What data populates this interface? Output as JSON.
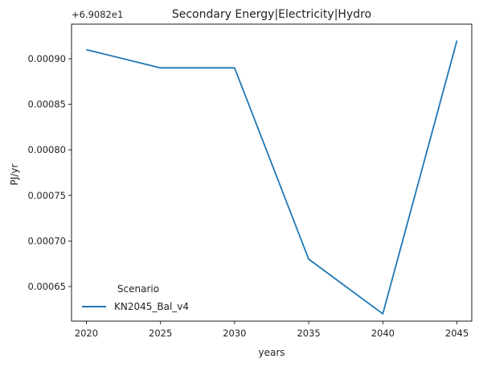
{
  "chart_data": {
    "type": "line",
    "title": "Secondary Energy|Electricity|Hydro",
    "xlabel": "years",
    "ylabel": "PJ/yr",
    "y_offset_label": "+6.9082e1",
    "x": [
      2020,
      2025,
      2030,
      2035,
      2040,
      2045
    ],
    "xlim": [
      2019,
      2046
    ],
    "ylim": [
      0.000612,
      0.000938
    ],
    "x_ticks": [
      2020,
      2025,
      2030,
      2035,
      2040,
      2045
    ],
    "x_tick_labels": [
      "2020",
      "2025",
      "2030",
      "2035",
      "2040",
      "2045"
    ],
    "y_ticks": [
      0.00065,
      0.0007,
      0.00075,
      0.0008,
      0.00085,
      0.0009
    ],
    "y_tick_labels": [
      "0.00065",
      "0.00070",
      "0.00075",
      "0.00080",
      "0.00085",
      "0.00090"
    ],
    "series": [
      {
        "name": "KN2045_Bal_v4",
        "color": "#1f77b4",
        "values": [
          0.00091,
          0.00089,
          0.00089,
          0.00068,
          0.00062,
          0.00092
        ]
      }
    ],
    "grid": false,
    "legend": {
      "title": "Scenario",
      "placement": "lower-left"
    }
  }
}
